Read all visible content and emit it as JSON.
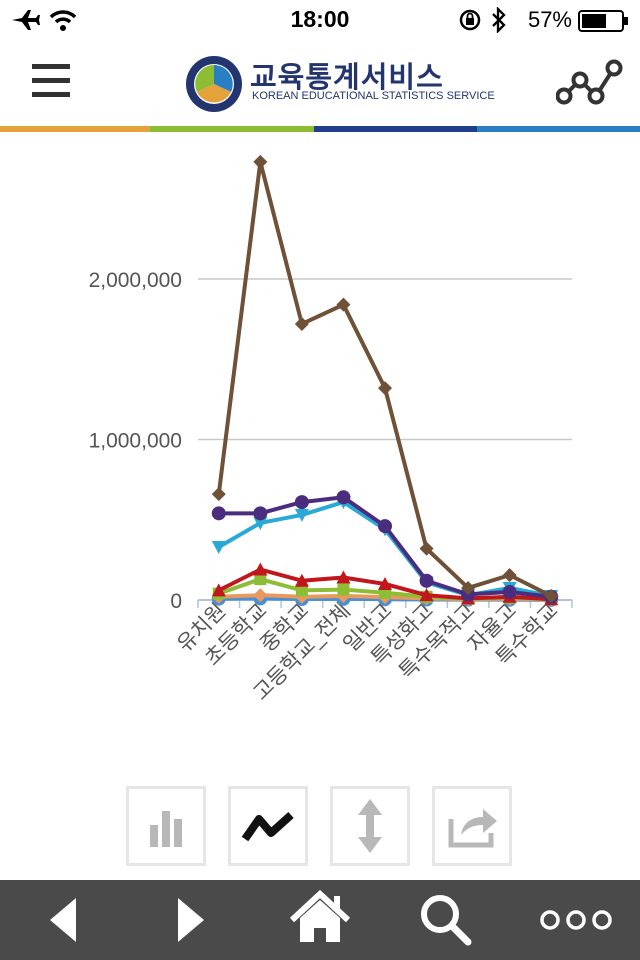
{
  "status_bar": {
    "time": "18:00",
    "battery_percent": "57%"
  },
  "header": {
    "title": "교육통계서비스",
    "subtitle": "KOREAN EDUCATIONAL STATISTICS SERVICE"
  },
  "colors": {
    "brand_navy": "#23346e",
    "stripe_1": "#e3a33a",
    "stripe_2": "#8cbd34",
    "stripe_3": "#1f3f8c",
    "stripe_4": "#2a7fc4",
    "nav_bg": "#4a4a4a"
  },
  "chart_data": {
    "type": "line",
    "categories": [
      "유치원",
      "초등학교",
      "중학교",
      "고등학교_전체",
      "일반고",
      "특성화고",
      "특수목적고",
      "자율고",
      "특수학교"
    ],
    "y_ticks": [
      {
        "value": 0,
        "label": "0"
      },
      {
        "value": 1000000,
        "label": "1,000,000"
      },
      {
        "value": 2000000,
        "label": "2,000,000"
      }
    ],
    "ylim": [
      0,
      2750000
    ],
    "grid": true,
    "series": [
      {
        "color": "#6f5137",
        "marker": "diamond",
        "values": [
          660000,
          2730000,
          1720000,
          1840000,
          1320000,
          320000,
          75000,
          155000,
          25000
        ]
      },
      {
        "color": "#4b2d7f",
        "marker": "circle",
        "values": [
          540000,
          540000,
          610000,
          640000,
          460000,
          120000,
          35000,
          50000,
          20000
        ]
      },
      {
        "color": "#29aad6",
        "marker": "triangle-down",
        "values": [
          330000,
          480000,
          530000,
          610000,
          440000,
          110000,
          30000,
          75000,
          25000
        ]
      },
      {
        "color": "#c0161c",
        "marker": "triangle",
        "values": [
          60000,
          190000,
          120000,
          140000,
          100000,
          30000,
          10000,
          20000,
          5000
        ]
      },
      {
        "color": "#8cbd34",
        "marker": "square",
        "values": [
          40000,
          130000,
          60000,
          65000,
          45000,
          20000,
          8000,
          15000,
          5000
        ]
      },
      {
        "color": "#e89a5c",
        "marker": "diamond",
        "values": [
          20000,
          30000,
          20000,
          25000,
          18000,
          10000,
          5000,
          8000,
          3000
        ]
      },
      {
        "color": "#4a8fd6",
        "marker": "circle",
        "values": [
          8000,
          10000,
          6000,
          7000,
          5000,
          3000,
          2000,
          2000,
          1000
        ]
      }
    ]
  },
  "toolbar": {
    "buttons": [
      "bar-chart-icon",
      "line-chart-icon",
      "vertical-arrows-icon",
      "share-arrow-icon"
    ]
  },
  "bottom_nav": {
    "items": [
      "back-arrow-icon",
      "forward-arrow-icon",
      "home-icon",
      "search-icon",
      "more-dots-icon"
    ]
  }
}
